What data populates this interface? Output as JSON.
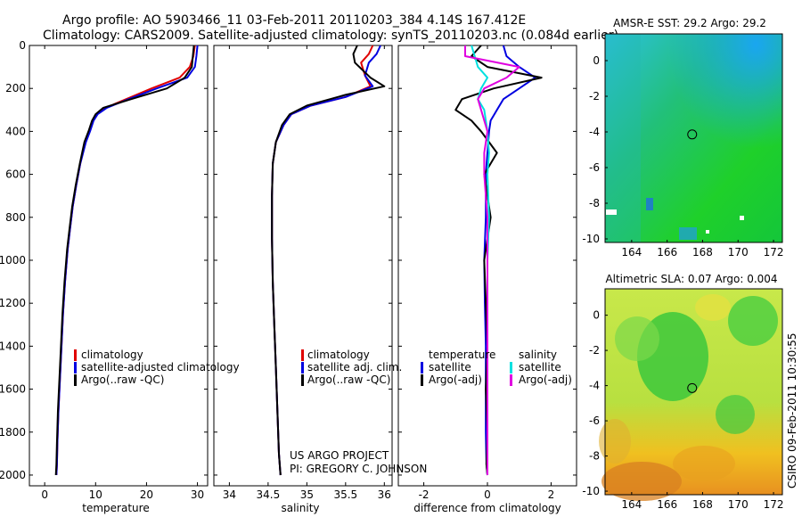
{
  "title": {
    "line1": "Argo profile: AO 5903466_11 03-Feb-2011 20110203_384 4.14S 167.412E",
    "line2": "Climatology: CARS2009. Satellite-adjusted climatology: synTS_20110203.nc (0.084d earlier)"
  },
  "side_label": "CSIRO 09-Feb-2011 10:30:55",
  "credit": {
    "line1": "US ARGO PROJECT",
    "line2": "PI: GREGORY C. JOHNSON"
  },
  "colors": {
    "climatology": "#e00000",
    "satellite": "#0000e0",
    "argo": "#000000",
    "sal_satellite": "#00e0e0",
    "sal_argo": "#e000e0"
  },
  "chart_data": [
    {
      "type": "line",
      "name": "temperature-profile",
      "xlabel": "temperature",
      "ylabel": "",
      "xlim": [
        -3,
        32
      ],
      "ylim": [
        0,
        2050
      ],
      "y_inverted": true,
      "xticks": [
        "0",
        "10",
        "20",
        "30"
      ],
      "xtick_values": [
        0,
        10,
        20,
        30
      ],
      "yticks": [
        "0",
        "200",
        "400",
        "600",
        "800",
        "1000",
        "1200",
        "1400",
        "1600",
        "1800",
        "2000"
      ],
      "ytick_values": [
        0,
        200,
        400,
        600,
        800,
        1000,
        1200,
        1400,
        1600,
        1800,
        2000
      ],
      "legend": [
        "climatology",
        "satellite-adjusted climatology",
        "Argo(..raw -QC)"
      ],
      "series": [
        {
          "name": "climatology",
          "color_key": "climatology",
          "x": [
            29.5,
            29.2,
            28.5,
            26.5,
            21.0,
            16.0,
            12.0,
            10.3,
            9.5,
            8.8,
            8.0,
            7.0,
            6.2,
            5.5,
            5.0,
            4.5,
            4.0,
            3.6,
            3.3,
            3.0,
            2.7,
            2.5,
            2.4,
            2.3
          ],
          "y": [
            0,
            50,
            100,
            150,
            200,
            250,
            290,
            320,
            350,
            400,
            450,
            550,
            650,
            750,
            850,
            950,
            1100,
            1250,
            1400,
            1550,
            1700,
            1850,
            1950,
            2000
          ]
        },
        {
          "name": "satellite",
          "color_key": "satellite",
          "x": [
            30.0,
            29.8,
            29.5,
            28.0,
            22.0,
            16.5,
            12.2,
            10.4,
            9.6,
            8.9,
            8.1,
            7.0,
            6.2,
            5.5,
            5.0,
            4.5,
            4.0,
            3.6,
            3.3,
            3.0,
            2.7,
            2.5,
            2.4,
            2.3
          ],
          "y": [
            0,
            50,
            100,
            150,
            200,
            250,
            290,
            320,
            350,
            400,
            450,
            550,
            650,
            750,
            850,
            950,
            1100,
            1250,
            1400,
            1550,
            1700,
            1850,
            1950,
            2000
          ]
        },
        {
          "name": "Argo",
          "color_key": "argo",
          "x": [
            29.3,
            29.1,
            28.9,
            27.5,
            24.0,
            17.0,
            11.5,
            10.0,
            9.3,
            8.6,
            7.8,
            6.9,
            6.1,
            5.4,
            4.9,
            4.4,
            3.9,
            3.5,
            3.2,
            2.9,
            2.6,
            2.4,
            2.3,
            2.2
          ],
          "y": [
            0,
            50,
            100,
            150,
            200,
            250,
            290,
            320,
            350,
            400,
            450,
            550,
            650,
            750,
            850,
            950,
            1100,
            1250,
            1400,
            1550,
            1700,
            1850,
            1950,
            2000
          ]
        }
      ]
    },
    {
      "type": "line",
      "name": "salinity-profile",
      "xlabel": "salinity",
      "xlim": [
        33.8,
        36.1
      ],
      "ylim": [
        0,
        2050
      ],
      "y_inverted": true,
      "xticks": [
        "34",
        "34.5",
        "35",
        "35.5",
        "36"
      ],
      "xtick_values": [
        34,
        34.5,
        35,
        35.5,
        36
      ],
      "legend": [
        "climatology",
        "satellite adj. clim.",
        "Argo(..raw -QC)"
      ],
      "series": [
        {
          "name": "climatology",
          "color_key": "climatology",
          "x": [
            35.85,
            35.8,
            35.7,
            35.75,
            35.82,
            35.5,
            35.05,
            34.8,
            34.7,
            34.6,
            34.56,
            34.55,
            34.55,
            34.56,
            34.58,
            34.6,
            34.62,
            34.64,
            34.66
          ],
          "y": [
            0,
            40,
            80,
            140,
            190,
            240,
            280,
            320,
            370,
            450,
            550,
            700,
            900,
            1100,
            1300,
            1500,
            1700,
            1900,
            2000
          ]
        },
        {
          "name": "satellite",
          "color_key": "satellite",
          "x": [
            35.95,
            35.9,
            35.8,
            35.75,
            35.85,
            35.5,
            35.05,
            34.8,
            34.7,
            34.6,
            34.56,
            34.55,
            34.55,
            34.56,
            34.58,
            34.6,
            34.62,
            34.64,
            34.66
          ],
          "y": [
            0,
            40,
            80,
            140,
            190,
            240,
            280,
            320,
            370,
            450,
            550,
            700,
            900,
            1100,
            1300,
            1500,
            1700,
            1900,
            2000
          ]
        },
        {
          "name": "Argo",
          "color_key": "argo",
          "x": [
            35.65,
            35.6,
            35.62,
            35.82,
            36.0,
            35.5,
            35.0,
            34.78,
            34.68,
            34.6,
            34.56,
            34.55,
            34.55,
            34.56,
            34.58,
            34.6,
            34.62,
            34.64,
            34.66
          ],
          "y": [
            0,
            40,
            80,
            150,
            190,
            230,
            280,
            320,
            370,
            450,
            550,
            700,
            900,
            1100,
            1300,
            1500,
            1700,
            1900,
            2000
          ]
        }
      ]
    },
    {
      "type": "line",
      "name": "difference-from-climatology",
      "xlabel": "difference from climatology",
      "xlim": [
        -2.8,
        2.8
      ],
      "ylim": [
        0,
        2050
      ],
      "y_inverted": true,
      "xticks": [
        "-2",
        "0",
        "2"
      ],
      "xtick_values": [
        -2,
        0,
        2
      ],
      "legend_titles": [
        "temperature",
        "salinity"
      ],
      "legend_temperature": [
        "satellite",
        "Argo(-adj)"
      ],
      "legend_salinity": [
        "satellite",
        "Argo(-adj)"
      ],
      "series": [
        {
          "name": "temperature satellite",
          "color_key": "satellite",
          "x": [
            0.5,
            0.6,
            1.0,
            1.5,
            1.0,
            0.5,
            0.3,
            0.1,
            0.05,
            0.0,
            -0.05,
            -0.05,
            -0.1,
            -0.08,
            -0.05,
            -0.05,
            -0.05,
            -0.03,
            0.0
          ],
          "y": [
            0,
            50,
            100,
            150,
            200,
            250,
            300,
            350,
            400,
            500,
            600,
            800,
            1000,
            1200,
            1400,
            1600,
            1800,
            1950,
            2000
          ]
        },
        {
          "name": "temperature Argo",
          "color_key": "argo",
          "x": [
            -0.2,
            -0.5,
            0.0,
            1.7,
            0.2,
            -0.8,
            -1.0,
            -0.5,
            -0.2,
            0.3,
            -0.1,
            0.1,
            -0.1,
            -0.05,
            0.0,
            -0.05,
            0.0,
            -0.03,
            0.0
          ],
          "y": [
            0,
            50,
            100,
            150,
            200,
            250,
            300,
            350,
            400,
            500,
            600,
            800,
            1000,
            1200,
            1400,
            1600,
            1800,
            1950,
            2000
          ]
        },
        {
          "name": "salinity satellite",
          "color_key": "sal_satellite",
          "x": [
            -0.5,
            -0.4,
            -0.3,
            0.0,
            -0.2,
            -0.3,
            -0.1,
            0.0,
            0.05,
            0.0,
            0.05,
            0.0,
            0.0,
            0.0,
            0.0,
            0.0,
            0.0,
            0.0
          ],
          "y": [
            0,
            50,
            100,
            150,
            200,
            250,
            300,
            400,
            500,
            600,
            800,
            1000,
            1200,
            1400,
            1600,
            1800,
            1950,
            2000
          ]
        },
        {
          "name": "salinity Argo",
          "color_key": "sal_argo",
          "x": [
            -0.7,
            -0.7,
            1.0,
            0.6,
            -0.1,
            -0.3,
            -0.2,
            0.0,
            -0.1,
            -0.1,
            0.0,
            0.0,
            0.0,
            0.0,
            0.0,
            0.0,
            0.0,
            0.0
          ],
          "y": [
            0,
            50,
            100,
            150,
            200,
            250,
            300,
            400,
            500,
            600,
            800,
            1000,
            1200,
            1400,
            1600,
            1800,
            1950,
            2000
          ]
        }
      ]
    },
    {
      "type": "heatmap",
      "name": "sst-map",
      "title": "AMSR-E SST: 29.2 Argo: 29.2",
      "xlim": [
        162.5,
        172.5
      ],
      "ylim": [
        -10.2,
        1.5
      ],
      "xticks": [
        "164",
        "166",
        "168",
        "170",
        "172"
      ],
      "xtick_values": [
        164,
        166,
        168,
        170,
        172
      ],
      "yticks": [
        "0",
        "-2",
        "-4",
        "-6",
        "-8",
        "-10"
      ],
      "ytick_values": [
        0,
        -2,
        -4,
        -6,
        -8,
        -10
      ],
      "marker": {
        "lon": 167.412,
        "lat": -4.14
      }
    },
    {
      "type": "heatmap",
      "name": "sla-map",
      "title": "Altimetric SLA: 0.07 Argo: 0.004",
      "xlim": [
        162.5,
        172.5
      ],
      "ylim": [
        -10.2,
        1.5
      ],
      "xticks": [
        "164",
        "166",
        "168",
        "170",
        "172"
      ],
      "xtick_values": [
        164,
        166,
        168,
        170,
        172
      ],
      "yticks": [
        "0",
        "-2",
        "-4",
        "-6",
        "-8",
        "-10"
      ],
      "ytick_values": [
        0,
        -2,
        -4,
        -6,
        -8,
        -10
      ],
      "marker": {
        "lon": 167.412,
        "lat": -4.14
      }
    }
  ]
}
